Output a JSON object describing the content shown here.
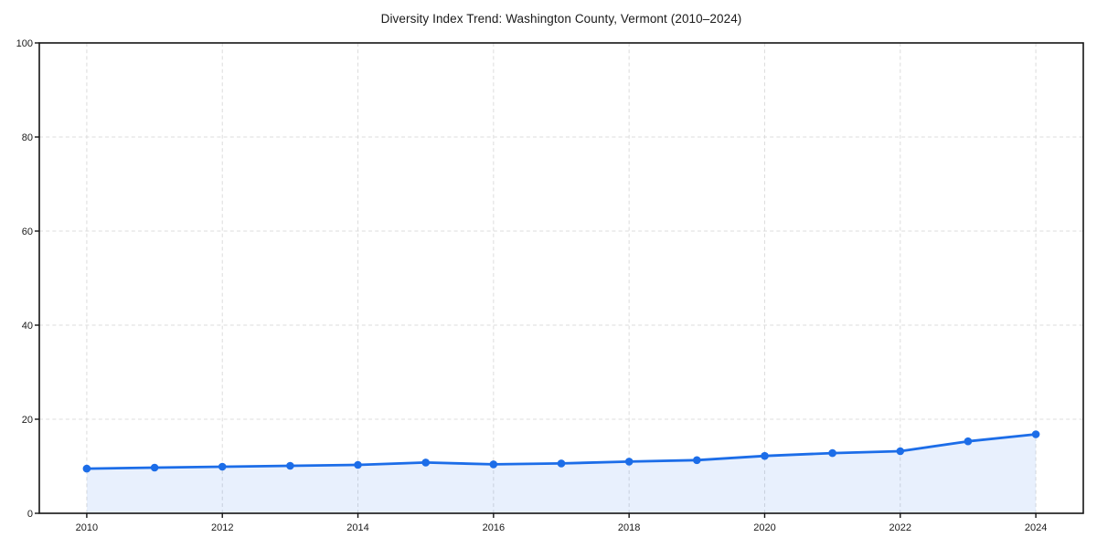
{
  "chart_data": {
    "type": "line",
    "title": "Diversity Index Trend: Washington County, Vermont (2010–2024)",
    "x": [
      2010,
      2011,
      2012,
      2013,
      2014,
      2015,
      2016,
      2017,
      2018,
      2019,
      2020,
      2021,
      2022,
      2023,
      2024
    ],
    "values": [
      9.5,
      9.7,
      9.9,
      10.1,
      10.3,
      10.8,
      10.4,
      10.6,
      11.0,
      11.3,
      12.2,
      12.8,
      13.2,
      15.3,
      16.8
    ],
    "xlabel": "",
    "ylabel": "",
    "xticks": [
      2010,
      2012,
      2014,
      2016,
      2018,
      2020,
      2022,
      2024
    ],
    "yticks": [
      0,
      20,
      40,
      60,
      80,
      100
    ],
    "xlim": [
      2009.3,
      2024.7
    ],
    "ylim": [
      0,
      100
    ],
    "grid": true,
    "grid_style": "dashed",
    "legend": false,
    "marker": "circle",
    "area_fill": true,
    "colors": {
      "line": "#1c6de8",
      "marker": "#1c6de8",
      "area": "#1c6de8",
      "area_opacity": "0.10",
      "grid": "#dcdcdc",
      "axis": "#141414",
      "tick_text": "#1a1a1a",
      "background": "#ffffff"
    }
  }
}
